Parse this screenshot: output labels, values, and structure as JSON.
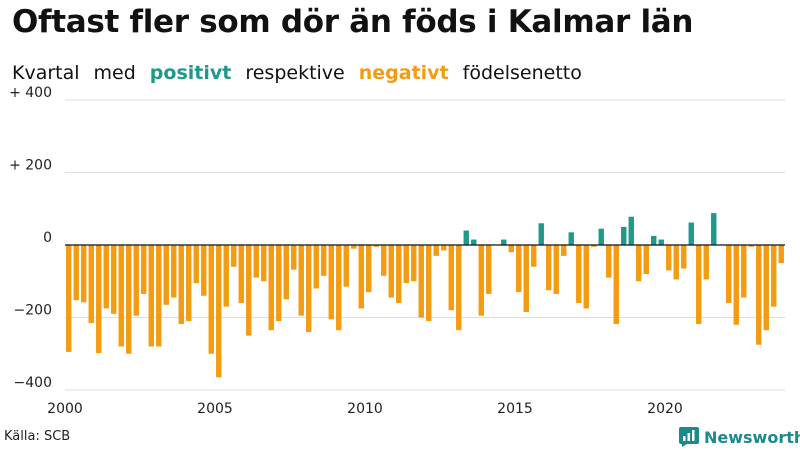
{
  "header": {
    "title": "Oftast fler som dör än föds i Kalmar län",
    "subtitle_parts": [
      "Kvartal",
      "med",
      "positivt",
      "respektive",
      "negativt",
      "födelsenetto"
    ]
  },
  "footer": {
    "source": "Källa: SCB",
    "brand": "Newsworthy"
  },
  "colors": {
    "positive": "#1f9a8a",
    "negative": "#f39c12",
    "brand": "#1a8a8e"
  },
  "chart_data": {
    "type": "bar",
    "title": "Oftast fler som dör än föds i Kalmar län",
    "subtitle": "Kvartal med positivt respektive negativt födelsenetto",
    "xlabel": "",
    "ylabel": "",
    "ylim": [
      -400,
      400
    ],
    "xlim": [
      2000,
      2024
    ],
    "y_ticks": [
      {
        "value": 400,
        "label": "+ 400"
      },
      {
        "value": 200,
        "label": "+ 200"
      },
      {
        "value": 0,
        "label": "0"
      },
      {
        "value": -200,
        "label": "−200"
      },
      {
        "value": -400,
        "label": "−400"
      }
    ],
    "x_ticks": [
      {
        "value": 2000,
        "label": "2000"
      },
      {
        "value": 2005,
        "label": "2005"
      },
      {
        "value": 2010,
        "label": "2010"
      },
      {
        "value": 2015,
        "label": "2015"
      },
      {
        "value": 2020,
        "label": "2020"
      }
    ],
    "start_year": 2000,
    "periods_per_year": 4,
    "values": [
      -295,
      -152,
      -158,
      -215,
      -298,
      -175,
      -190,
      -280,
      -300,
      -195,
      -135,
      -280,
      -280,
      -165,
      -145,
      -218,
      -210,
      -105,
      -140,
      -300,
      -365,
      -170,
      -60,
      -160,
      -250,
      -90,
      -100,
      -235,
      -210,
      -150,
      -68,
      -195,
      -240,
      -120,
      -85,
      -205,
      -235,
      -115,
      -10,
      -175,
      -130,
      -5,
      -85,
      -145,
      -160,
      -105,
      -100,
      -200,
      -210,
      -30,
      -15,
      -180,
      -235,
      40,
      15,
      -195,
      -135,
      0,
      15,
      -20,
      -130,
      -185,
      -60,
      60,
      -125,
      -135,
      -30,
      35,
      -160,
      -175,
      -5,
      45,
      -90,
      -218,
      50,
      78,
      -100,
      -80,
      25,
      15,
      -70,
      -95,
      -65,
      62,
      -218,
      -95,
      88,
      0,
      -160,
      -220,
      -145,
      -5,
      -275,
      -235,
      -170,
      -50
    ]
  }
}
